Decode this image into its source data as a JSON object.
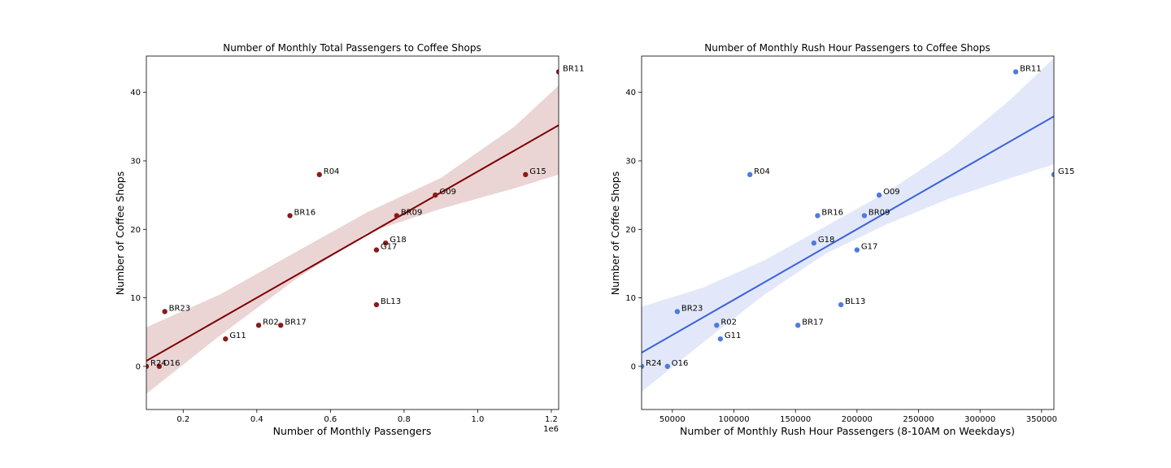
{
  "chart_data": [
    {
      "type": "scatter",
      "title": "Number of Monthly Total Passengers to Coffee Shops",
      "xlabel": "Number of Monthly Passengers",
      "ylabel": "Number of Coffee Shops",
      "x_offset_label": "1e6",
      "xlim": [
        0.1,
        1.22
      ],
      "ylim": [
        -6.3,
        45.3
      ],
      "xticks": [
        0.2,
        0.4,
        0.6,
        0.8,
        1.0,
        1.2
      ],
      "xtick_labels": [
        "0.2",
        "0.4",
        "0.6",
        "0.8",
        "1.0",
        "1.2"
      ],
      "yticks": [
        0,
        10,
        20,
        30,
        40
      ],
      "ytick_labels": [
        "0",
        "10",
        "20",
        "30",
        "40"
      ],
      "grid": false,
      "point_color": "#8b1a1a",
      "line_color": "#800000",
      "band_color": "#e8cccd",
      "regression": {
        "x": [
          0.1,
          1.22
        ],
        "y": [
          0.8,
          35.2
        ]
      },
      "band": {
        "x": [
          0.1,
          0.3,
          0.5,
          0.7,
          0.9,
          1.1,
          1.22
        ],
        "lower": [
          -4.0,
          4.5,
          12.5,
          19.5,
          23.0,
          26.0,
          28.0
        ],
        "upper": [
          5.7,
          10.5,
          16.5,
          22.5,
          27.5,
          35.0,
          41.0
        ]
      },
      "points": [
        {
          "label": "BR11",
          "x": 1.22,
          "y": 43
        },
        {
          "label": "R04",
          "x": 0.57,
          "y": 28
        },
        {
          "label": "G15",
          "x": 1.13,
          "y": 28
        },
        {
          "label": "O09",
          "x": 0.885,
          "y": 25
        },
        {
          "label": "BR16",
          "x": 0.49,
          "y": 22
        },
        {
          "label": "BR09",
          "x": 0.78,
          "y": 22
        },
        {
          "label": "G18",
          "x": 0.75,
          "y": 18
        },
        {
          "label": "G17",
          "x": 0.725,
          "y": 17
        },
        {
          "label": "BL13",
          "x": 0.725,
          "y": 9
        },
        {
          "label": "BR23",
          "x": 0.15,
          "y": 8
        },
        {
          "label": "R02",
          "x": 0.405,
          "y": 6
        },
        {
          "label": "BR17",
          "x": 0.465,
          "y": 6
        },
        {
          "label": "G11",
          "x": 0.315,
          "y": 4
        },
        {
          "label": "R24",
          "x": 0.1,
          "y": 0
        },
        {
          "label": "O16",
          "x": 0.135,
          "y": 0
        }
      ]
    },
    {
      "type": "scatter",
      "title": "Number of Monthly Rush Hour Passengers to Coffee Shops",
      "xlabel": "Number of Monthly Rush Hour Passengers (8-10AM on Weekdays)",
      "ylabel": "Number of Coffee Shops",
      "xlim": [
        25000,
        360000
      ],
      "ylim": [
        -6.3,
        45.3
      ],
      "xticks": [
        50000,
        100000,
        150000,
        200000,
        250000,
        300000,
        350000
      ],
      "xtick_labels": [
        "50000",
        "100000",
        "150000",
        "200000",
        "250000",
        "300000",
        "350000"
      ],
      "yticks": [
        0,
        10,
        20,
        30,
        40
      ],
      "ytick_labels": [
        "0",
        "10",
        "20",
        "30",
        "40"
      ],
      "grid": false,
      "point_color": "#4f7ae0",
      "line_color": "#3b62d9",
      "band_color": "#dde4f8",
      "regression": {
        "x": [
          25000,
          360000
        ],
        "y": [
          2.0,
          36.5
        ]
      },
      "band": {
        "x": [
          25000,
          75000,
          125000,
          175000,
          225000,
          275000,
          325000,
          360000
        ],
        "lower": [
          -3.7,
          3.5,
          10.5,
          16.5,
          20.8,
          24.5,
          27.5,
          29.5
        ],
        "upper": [
          8.7,
          11.5,
          15.5,
          20.5,
          25.5,
          31.5,
          39.0,
          45.0
        ]
      },
      "points": [
        {
          "label": "BR11",
          "x": 329000,
          "y": 43
        },
        {
          "label": "R04",
          "x": 113000,
          "y": 28
        },
        {
          "label": "G15",
          "x": 360000,
          "y": 28
        },
        {
          "label": "O09",
          "x": 218000,
          "y": 25
        },
        {
          "label": "BR16",
          "x": 168000,
          "y": 22
        },
        {
          "label": "BR09",
          "x": 206000,
          "y": 22
        },
        {
          "label": "G18",
          "x": 165000,
          "y": 18
        },
        {
          "label": "G17",
          "x": 200000,
          "y": 17
        },
        {
          "label": "BL13",
          "x": 187000,
          "y": 9
        },
        {
          "label": "BR23",
          "x": 54000,
          "y": 8
        },
        {
          "label": "R02",
          "x": 86000,
          "y": 6
        },
        {
          "label": "BR17",
          "x": 152000,
          "y": 6
        },
        {
          "label": "G11",
          "x": 89000,
          "y": 4
        },
        {
          "label": "R24",
          "x": 25000,
          "y": 0
        },
        {
          "label": "O16",
          "x": 46000,
          "y": 0
        }
      ]
    }
  ]
}
